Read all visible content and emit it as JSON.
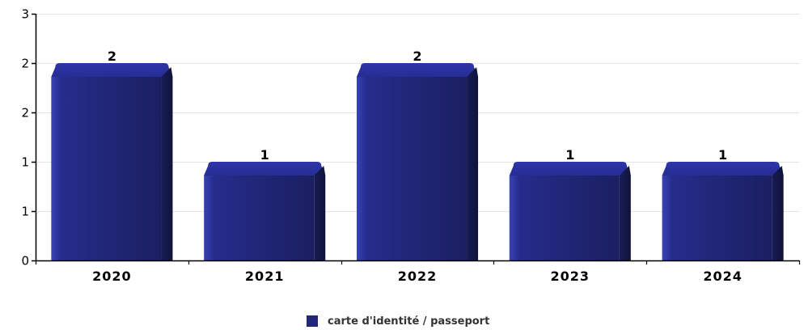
{
  "chart_data": {
    "type": "bar",
    "categories": [
      "2020",
      "2021",
      "2022",
      "2023",
      "2024"
    ],
    "series": [
      {
        "name": "carte d'identité / passeport",
        "values": [
          2,
          1,
          2,
          1,
          1
        ],
        "color": "#22277a"
      }
    ],
    "y_tick_labels": [
      "0",
      "1",
      "1",
      "2",
      "2",
      "3"
    ],
    "ylim": [
      0,
      2.5
    ],
    "grid": true,
    "legend_position": "bottom-center",
    "title": "",
    "xlabel": "",
    "ylabel": ""
  }
}
